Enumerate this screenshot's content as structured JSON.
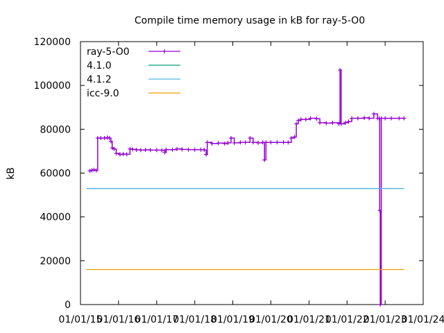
{
  "chart_data": {
    "type": "line",
    "title": "Compile time memory usage in kB for ray-5-O0",
    "xlabel": "",
    "ylabel": "kB",
    "xlim": [
      "2015-01-01",
      "2024-01-01"
    ],
    "ylim": [
      0,
      120000
    ],
    "x_ticks": [
      "01/01/15",
      "01/01/16",
      "01/01/17",
      "01/01/18",
      "01/01/19",
      "01/01/20",
      "01/01/21",
      "01/01/22",
      "01/01/23",
      "01/01/24"
    ],
    "y_ticks": [
      0,
      20000,
      40000,
      60000,
      80000,
      100000,
      120000
    ],
    "grid": false,
    "legend_position": "top-left",
    "series": [
      {
        "name": "ray-5-O0",
        "color": "#9400d3",
        "style": "line-points",
        "points": [
          [
            "2015-04-01",
            61000
          ],
          [
            "2015-04-20",
            61300
          ],
          [
            "2015-05-10",
            61500
          ],
          [
            "2015-06-01",
            61200
          ],
          [
            "2015-06-15",
            76000
          ],
          [
            "2015-07-15",
            76000
          ],
          [
            "2015-08-20",
            76000
          ],
          [
            "2015-09-15",
            76200
          ],
          [
            "2015-10-05",
            76000
          ],
          [
            "2015-10-20",
            74500
          ],
          [
            "2015-11-01",
            71500
          ],
          [
            "2015-11-20",
            71000
          ],
          [
            "2015-12-10",
            69000
          ],
          [
            "2016-01-15",
            68500
          ],
          [
            "2016-02-15",
            68700
          ],
          [
            "2016-03-20",
            68600
          ],
          [
            "2016-04-20",
            71000
          ],
          [
            "2016-05-15",
            70800
          ],
          [
            "2016-06-20",
            70600
          ],
          [
            "2016-08-01",
            70500
          ],
          [
            "2016-09-15",
            70600
          ],
          [
            "2016-11-01",
            70500
          ],
          [
            "2017-01-01",
            70500
          ],
          [
            "2017-02-20",
            70400
          ],
          [
            "2017-03-20",
            69500
          ],
          [
            "2017-04-01",
            70700
          ],
          [
            "2017-06-01",
            70700
          ],
          [
            "2017-07-15",
            71000
          ],
          [
            "2017-09-01",
            70800
          ],
          [
            "2017-11-01",
            70700
          ],
          [
            "2018-01-01",
            70700
          ],
          [
            "2018-03-01",
            70700
          ],
          [
            "2018-04-01",
            70600
          ],
          [
            "2018-04-20",
            68500
          ],
          [
            "2018-05-01",
            74000
          ],
          [
            "2018-06-15",
            73500
          ],
          [
            "2018-08-15",
            73700
          ],
          [
            "2018-10-15",
            73500
          ],
          [
            "2018-11-15",
            73800
          ],
          [
            "2018-12-15",
            76000
          ],
          [
            "2019-01-15",
            73800
          ],
          [
            "2019-03-15",
            74000
          ],
          [
            "2019-05-01",
            74000
          ],
          [
            "2019-06-15",
            76000
          ],
          [
            "2019-07-15",
            74000
          ],
          [
            "2019-09-01",
            73800
          ],
          [
            "2019-10-15",
            74000
          ],
          [
            "2019-11-01",
            66000
          ],
          [
            "2019-11-15",
            74000
          ],
          [
            "2020-01-01",
            74000
          ],
          [
            "2020-03-01",
            74000
          ],
          [
            "2020-05-01",
            74000
          ],
          [
            "2020-06-15",
            74000
          ],
          [
            "2020-07-15",
            76000
          ],
          [
            "2020-08-15",
            76500
          ],
          [
            "2020-09-01",
            82500
          ],
          [
            "2020-09-20",
            84000
          ],
          [
            "2020-10-15",
            84500
          ],
          [
            "2020-12-01",
            84500
          ],
          [
            "2021-01-15",
            85000
          ],
          [
            "2021-03-15",
            84800
          ],
          [
            "2021-04-15",
            83000
          ],
          [
            "2021-06-15",
            82800
          ],
          [
            "2021-08-15",
            83000
          ],
          [
            "2021-10-15",
            82500
          ],
          [
            "2021-10-25",
            107000
          ],
          [
            "2021-11-05",
            82500
          ],
          [
            "2021-12-15",
            83000
          ],
          [
            "2022-01-15",
            83500
          ],
          [
            "2022-02-15",
            85000
          ],
          [
            "2022-04-15",
            85000
          ],
          [
            "2022-06-15",
            85200
          ],
          [
            "2022-08-01",
            85000
          ],
          [
            "2022-09-15",
            87000
          ],
          [
            "2022-10-20",
            85000
          ],
          [
            "2022-11-05",
            85000
          ],
          [
            "2022-11-10",
            43000
          ],
          [
            "2022-11-15",
            0
          ],
          [
            "2022-11-25",
            85000
          ],
          [
            "2023-01-01",
            85000
          ],
          [
            "2023-03-01",
            85000
          ],
          [
            "2023-05-15",
            85000
          ],
          [
            "2023-07-01",
            85000
          ]
        ]
      },
      {
        "name": "4.1.0",
        "color": "#009e73",
        "style": "line",
        "points": [
          [
            "2015-03-01",
            53000
          ],
          [
            "2023-07-01",
            53000
          ]
        ]
      },
      {
        "name": "4.1.2",
        "color": "#56b4e9",
        "style": "line",
        "points": [
          [
            "2015-03-01",
            53000
          ],
          [
            "2023-07-01",
            53000
          ]
        ]
      },
      {
        "name": "icc-9.0",
        "color": "#e69f00",
        "style": "line",
        "points": [
          [
            "2015-03-01",
            16000
          ],
          [
            "2023-07-01",
            16000
          ]
        ]
      }
    ]
  }
}
